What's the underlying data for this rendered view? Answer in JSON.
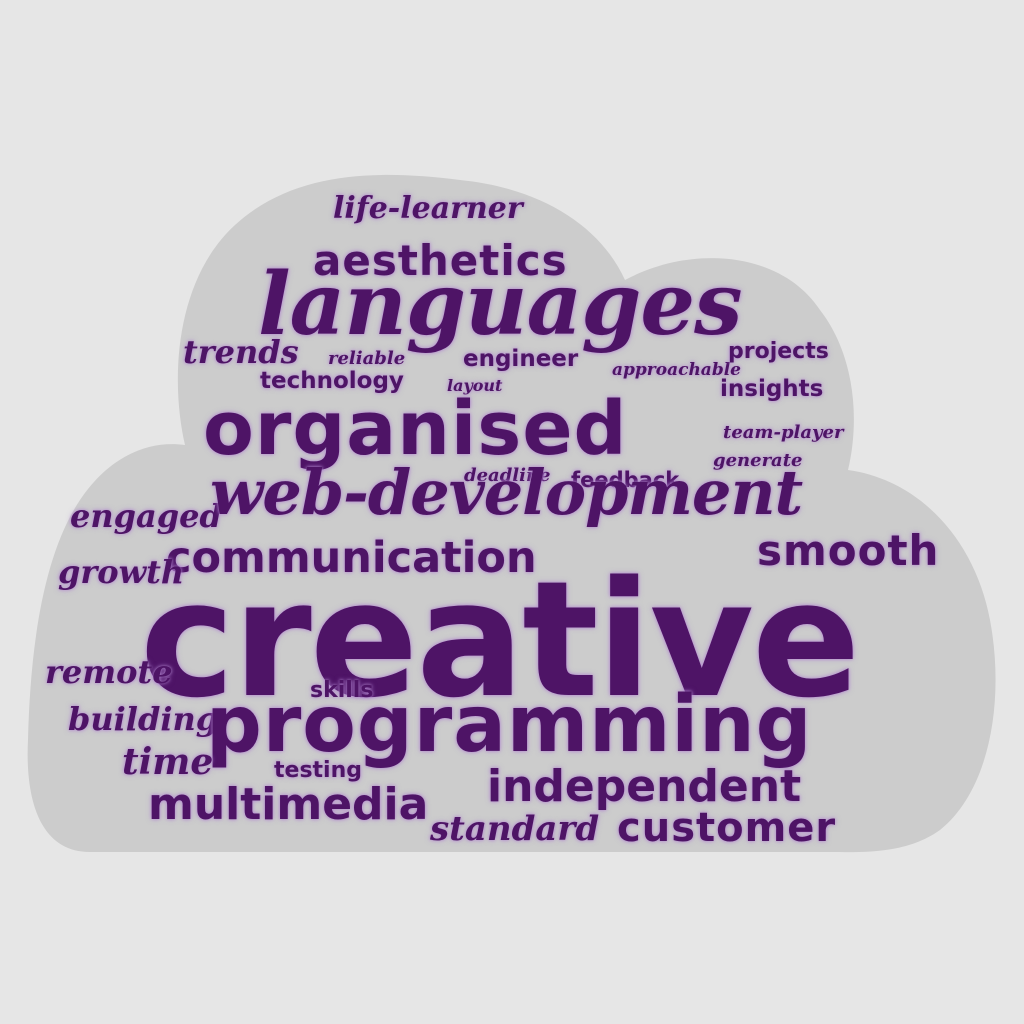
{
  "colors": {
    "background": "#e6e6e6",
    "cloud": "#cccccc",
    "word": "#4e1466",
    "glow": "#b48ad0"
  },
  "words": {
    "life_learner": "life-learner",
    "aesthetics": "aesthetics",
    "languages": "languages",
    "trends": "trends",
    "reliable": "reliable",
    "engineer": "engineer",
    "approachable": "approachable",
    "projects": "projects",
    "technology": "technology",
    "layout": "layout",
    "insights": "insights",
    "organised": "organised",
    "team_player": "team-player",
    "generate": "generate",
    "deadline": "deadline",
    "feedback": "feedback",
    "engaged": "engaged",
    "web_development": "web-development",
    "communication": "communication",
    "smooth": "smooth",
    "growth": "growth",
    "creative": "creative",
    "remote": "remote",
    "skills": "skills",
    "building": "building",
    "programming": "programming",
    "time": "time",
    "testing": "testing",
    "independent": "independent",
    "multimedia": "multimedia",
    "standard": "standard",
    "customer": "customer"
  }
}
